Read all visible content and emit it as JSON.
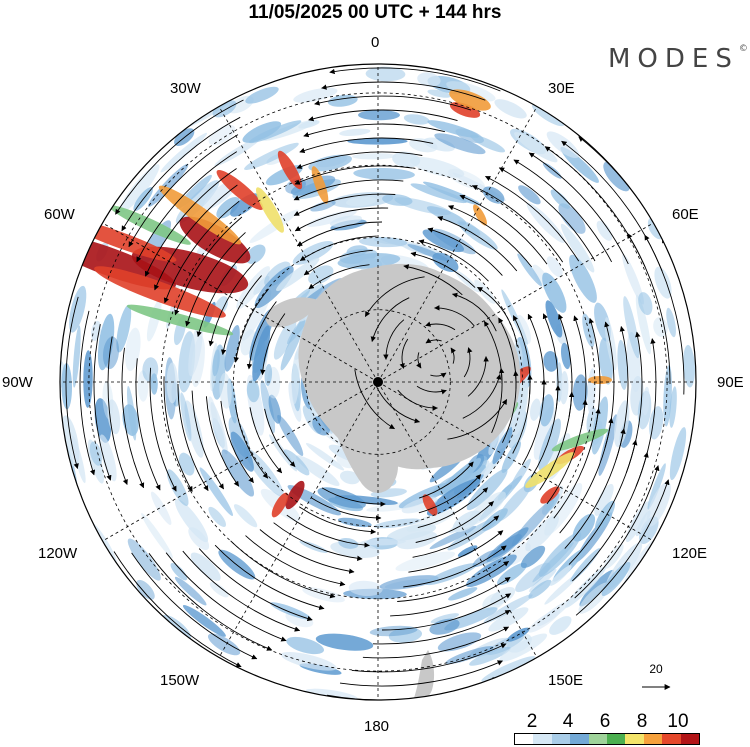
{
  "title": "11/05/2025  00 UTC  + 144 hrs",
  "logo": {
    "text": "MODES",
    "mark": "©"
  },
  "longitude_labels": {
    "l0": "0",
    "l30e": "30E",
    "l60e": "60E",
    "l90e": "90E",
    "l120e": "120E",
    "l150e": "150E",
    "l180": "180",
    "l150w": "150W",
    "l120w": "120W",
    "l90w": "90W",
    "l60w": "60W",
    "l30w": "30W"
  },
  "reference_vector": {
    "label": "20"
  },
  "colorbar": {
    "ticks": [
      "2",
      "4",
      "6",
      "8",
      "10"
    ],
    "colors": [
      "#ffffff",
      "#d6e8f5",
      "#a9cde8",
      "#73a9d6",
      "#9fd39a",
      "#4caf50",
      "#f3e46a",
      "#f6a13c",
      "#e5482b",
      "#b21417"
    ]
  },
  "map_style": {
    "land_color": "#c8c8c8",
    "shade_light": "#d4e6f4",
    "shade_mid": "#94c1e4",
    "shade_dark": "#5b98cf",
    "shade_green": "#7ec785",
    "shade_yellow": "#efe06a",
    "shade_orange": "#f19b3a",
    "shade_red": "#e0402a",
    "shade_darkred": "#a81216"
  }
}
